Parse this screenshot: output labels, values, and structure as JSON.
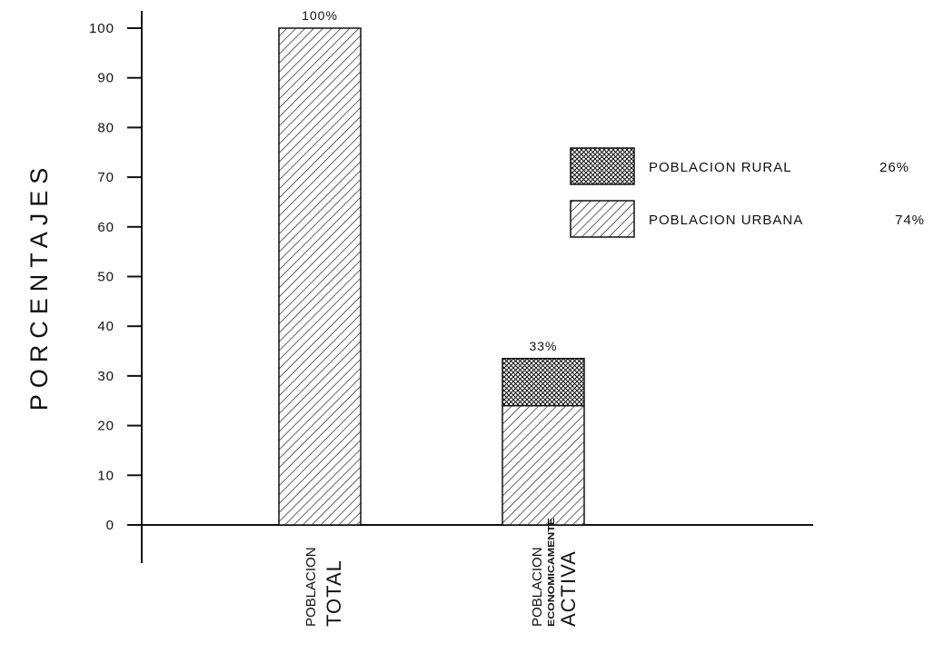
{
  "chart_data": {
    "type": "bar",
    "stacked": true,
    "ylabel": "PORCENTAJES",
    "xlabel": "",
    "ylim": [
      0,
      100
    ],
    "yticks": [
      "0",
      "10",
      "20",
      "30",
      "40",
      "50",
      "60",
      "70",
      "80",
      "90",
      "100"
    ],
    "grid": false,
    "legend_position": "right",
    "categories": [
      {
        "line1": "POBLACION",
        "line2": "",
        "line3": "TOTAL"
      },
      {
        "line1": "POBLACION",
        "line2": "ECONOMICAMENTE",
        "line3": "ACTIVA"
      }
    ],
    "series": [
      {
        "name": "POBLACION URBANA",
        "legend_value": "74%",
        "pattern": "diagonal-hatch",
        "values": [
          100,
          24
        ]
      },
      {
        "name": "POBLACION RURAL",
        "legend_value": "26%",
        "pattern": "cross-hatch",
        "values": [
          0,
          9.5
        ]
      }
    ],
    "data_labels": [
      "100%",
      "33%"
    ]
  }
}
